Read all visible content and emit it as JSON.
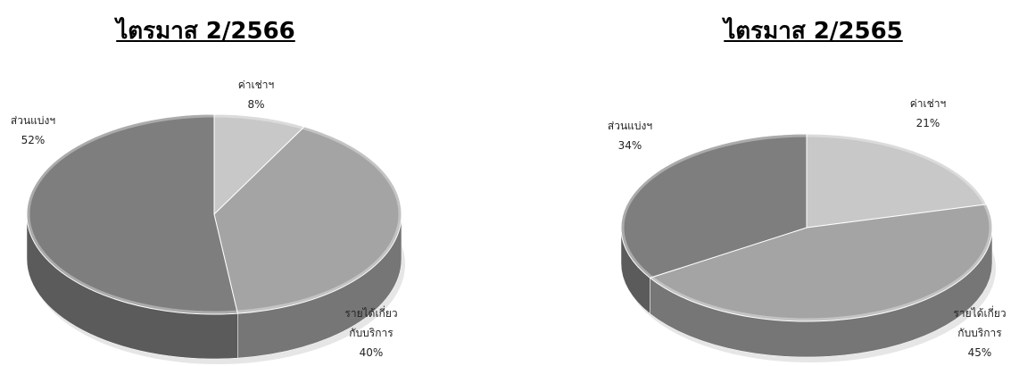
{
  "chart_data": [
    {
      "type": "pie",
      "title": "ไตรมาส 2/2566",
      "slices": [
        {
          "label": "ค่าเช่าฯ",
          "value": 8,
          "pct_label": "8%",
          "color": "#c8c8c8"
        },
        {
          "label": "รายได้เกี่ยวกับบริการ",
          "label_lines": [
            "รายได้เกี่ยว",
            "กับบริการ"
          ],
          "value": 40,
          "pct_label": "40%",
          "color": "#a4a4a4"
        },
        {
          "label": "ส่วนแบ่งฯ",
          "value": 52,
          "pct_label": "52%",
          "color": "#7e7e7e"
        }
      ]
    },
    {
      "type": "pie",
      "title": "ไตรมาส 2/2565",
      "slices": [
        {
          "label": "ค่าเช่าฯ",
          "value": 21,
          "pct_label": "21%",
          "color": "#c8c8c8"
        },
        {
          "label": "รายได้เกี่ยวกับบริการ",
          "label_lines": [
            "รายได้เกี่ยว",
            "กับบริการ"
          ],
          "value": 45,
          "pct_label": "45%",
          "color": "#a4a4a4"
        },
        {
          "label": "ส่วนแบ่งฯ",
          "value": 34,
          "pct_label": "34%",
          "color": "#7e7e7e"
        }
      ]
    }
  ]
}
